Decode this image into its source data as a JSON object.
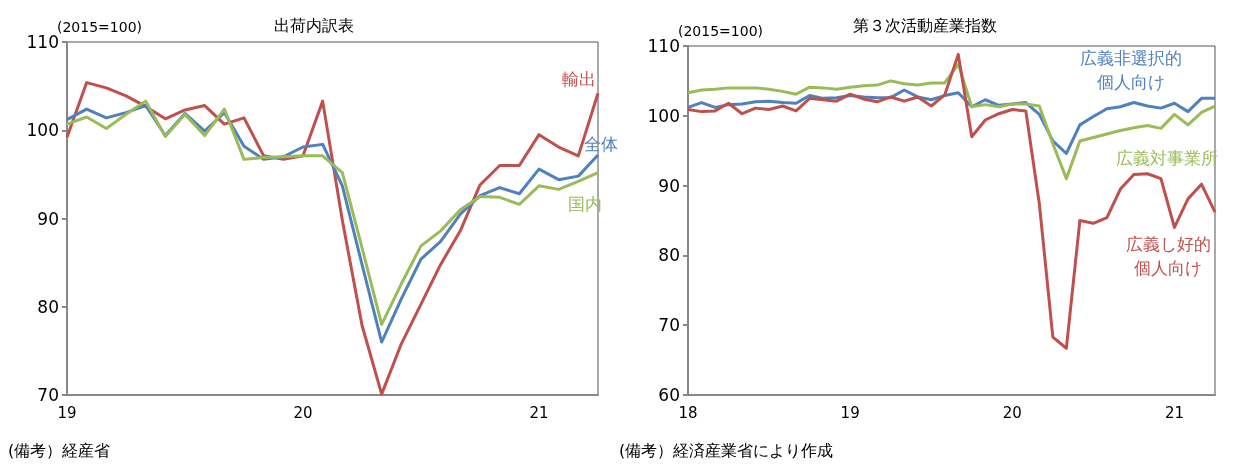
{
  "chart_data": [
    {
      "type": "line",
      "title": "出荷内訳表",
      "ylabel": "(2015=100)",
      "annotations": [
        "(備考）経産省"
      ],
      "categories": [
        "19",
        null,
        null,
        null,
        null,
        null,
        null,
        null,
        null,
        null,
        null,
        null,
        "20",
        null,
        null,
        null,
        null,
        null,
        null,
        null,
        null,
        null,
        null,
        null,
        "21",
        null,
        null,
        null
      ],
      "series": [
        {
          "name": "輸出",
          "color": "#c0504d",
          "values": [
            99.2,
            105.4,
            104.8,
            103.9,
            102.7,
            101.3,
            102.3,
            102.8,
            100.7,
            101.4,
            97.1,
            96.7,
            97.1,
            103.3,
            89.8,
            77.9,
            70.1,
            75.8,
            80.3,
            84.8,
            88.6,
            93.8,
            96.0,
            96.0,
            99.5,
            98.1,
            97.1,
            104.2
          ]
        },
        {
          "name": "全体",
          "color": "#4f81bd",
          "values": [
            101.2,
            102.4,
            101.4,
            102.0,
            102.8,
            99.4,
            101.9,
            99.9,
            102.0,
            98.2,
            96.7,
            97.0,
            98.1,
            98.4,
            93.7,
            84.8,
            76.0,
            80.9,
            85.4,
            87.4,
            90.5,
            92.6,
            93.5,
            92.8,
            95.6,
            94.4,
            94.8,
            97.2
          ]
        },
        {
          "name": "国内",
          "color": "#9bbb59",
          "values": [
            100.7,
            101.5,
            100.2,
            101.8,
            103.3,
            99.3,
            101.8,
            99.4,
            102.4,
            96.7,
            96.9,
            97.0,
            97.1,
            97.1,
            95.2,
            86.7,
            78.0,
            82.6,
            86.9,
            88.6,
            91.0,
            92.5,
            92.4,
            91.6,
            93.7,
            93.3,
            94.2,
            95.2
          ]
        }
      ],
      "ylim": [
        70,
        110
      ],
      "yticks": [
        70,
        80,
        90,
        100,
        110
      ],
      "grid": false,
      "legend": false
    },
    {
      "type": "line",
      "title": "第３次活動産業指数",
      "ylabel": "(2015=100)",
      "annotations": [
        "(備考）経済産業省により作成"
      ],
      "categories": [
        "18",
        null,
        null,
        null,
        null,
        null,
        null,
        null,
        null,
        null,
        null,
        null,
        "19",
        null,
        null,
        null,
        null,
        null,
        null,
        null,
        null,
        null,
        null,
        null,
        "20",
        null,
        null,
        null,
        null,
        null,
        null,
        null,
        null,
        null,
        null,
        null,
        "21",
        null,
        null,
        null
      ],
      "series": [
        {
          "name": "広義非選択的個人向け",
          "color": "#4f81bd",
          "values": [
            101.2,
            101.9,
            101.2,
            101.6,
            101.7,
            102.0,
            102.1,
            101.9,
            101.8,
            102.9,
            102.5,
            102.6,
            102.9,
            102.7,
            102.6,
            102.6,
            103.7,
            102.7,
            102.3,
            102.9,
            103.3,
            101.3,
            102.3,
            101.5,
            101.7,
            101.9,
            100.2,
            96.4,
            94.6,
            98.7,
            99.9,
            101.0,
            101.3,
            101.9,
            101.4,
            101.1,
            101.8,
            100.6,
            102.5,
            102.5
          ]
        },
        {
          "name": "広義対事業所",
          "color": "#9bbb59",
          "values": [
            103.3,
            103.7,
            103.8,
            104.0,
            104.0,
            104.0,
            103.8,
            103.5,
            103.1,
            104.1,
            104.0,
            103.8,
            104.1,
            104.3,
            104.4,
            105.0,
            104.6,
            104.4,
            104.7,
            104.7,
            107.4,
            101.3,
            101.6,
            101.3,
            101.7,
            101.7,
            101.4,
            96.0,
            91.0,
            96.4,
            96.9,
            97.4,
            97.9,
            98.3,
            98.6,
            98.2,
            100.2,
            98.7,
            100.5,
            101.4
          ]
        },
        {
          "name": "広義し好的個人向け",
          "color": "#c0504d",
          "values": [
            100.9,
            100.6,
            100.7,
            101.8,
            100.3,
            101.1,
            100.9,
            101.4,
            100.7,
            102.5,
            102.3,
            102.1,
            103.1,
            102.4,
            102.0,
            102.7,
            102.1,
            102.7,
            101.4,
            103.0,
            108.8,
            97.0,
            99.4,
            100.3,
            100.9,
            100.7,
            87.4,
            68.3,
            66.7,
            85.0,
            84.6,
            85.4,
            89.5,
            91.6,
            91.7,
            91.0,
            84.0,
            88.1,
            90.2,
            86.2
          ]
        }
      ],
      "ylim": [
        60,
        110
      ],
      "yticks": [
        60,
        70,
        80,
        90,
        100,
        110
      ],
      "grid": false,
      "legend": false
    }
  ]
}
